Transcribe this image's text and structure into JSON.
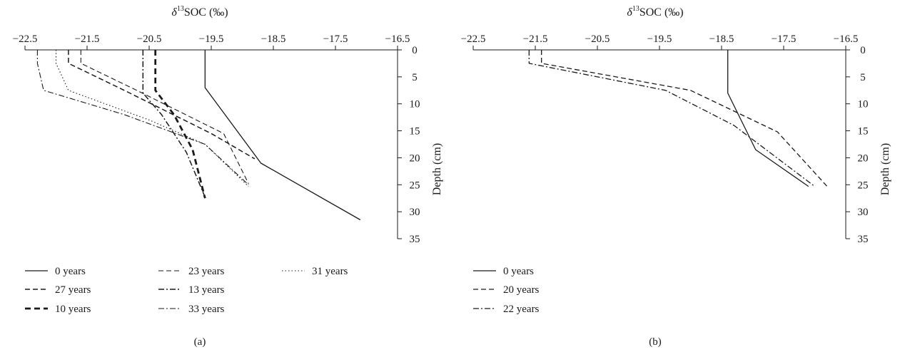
{
  "chart_data": [
    {
      "type": "line",
      "panel_label": "(a)",
      "xlabel": {
        "symbol": "δ",
        "superscript": "13",
        "text": "SOC (‰)"
      },
      "ylabel": "Depth (cm)",
      "x_ticks": [
        "−22.5",
        "−21.5",
        "−20.5",
        "−19.5",
        "−18.5",
        "−17.5",
        "−16.5"
      ],
      "y_ticks": [
        "0",
        "5",
        "10",
        "15",
        "20",
        "25",
        "30",
        "35"
      ],
      "xlim": [
        -22.5,
        -16.5
      ],
      "ylim": [
        0,
        35
      ],
      "x_axis_position": "top",
      "y_axis_position": "right",
      "y_inverted": true,
      "grid": false,
      "legend_position": "bottom",
      "legend_columns": 3,
      "series": [
        {
          "name": "0 years",
          "dash": "solid",
          "width": 1.3,
          "points": [
            [
              -19.6,
              0
            ],
            [
              -19.6,
              7
            ],
            [
              -18.7,
              21
            ],
            [
              -17.1,
              31.5
            ]
          ]
        },
        {
          "name": "27 years",
          "dash": "dash",
          "width": 1.5,
          "points": [
            [
              -21.8,
              0
            ],
            [
              -21.8,
              2.5
            ],
            [
              -20.9,
              7.5
            ],
            [
              -19.5,
              15.5
            ],
            [
              -18.8,
              20.2
            ]
          ]
        },
        {
          "name": "10 years",
          "dash": "dash-bold",
          "width": 2.8,
          "points": [
            [
              -20.4,
              0
            ],
            [
              -20.4,
              7.5
            ],
            [
              -20.1,
              12
            ],
            [
              -19.8,
              18.5
            ],
            [
              -19.6,
              27.5
            ]
          ]
        },
        {
          "name": "23 years",
          "dash": "dash",
          "width": 1.1,
          "points": [
            [
              -21.6,
              0
            ],
            [
              -21.6,
              2.5
            ],
            [
              -20.7,
              7.5
            ],
            [
              -19.3,
              15.5
            ],
            [
              -18.9,
              24.8
            ]
          ]
        },
        {
          "name": "13 years",
          "dash": "dashdot",
          "width": 1.5,
          "points": [
            [
              -20.6,
              0
            ],
            [
              -20.6,
              8
            ],
            [
              -20.3,
              12
            ],
            [
              -19.9,
              19
            ],
            [
              -19.6,
              27.3
            ]
          ]
        },
        {
          "name": "33 years",
          "dash": "dashdot",
          "width": 1.1,
          "points": [
            [
              -22.3,
              0
            ],
            [
              -22.3,
              2.5
            ],
            [
              -22.2,
              7.5
            ],
            [
              -20.9,
              12
            ],
            [
              -19.6,
              17.5
            ],
            [
              -18.9,
              25
            ]
          ]
        },
        {
          "name": "31 years",
          "dash": "dot",
          "width": 1.1,
          "points": [
            [
              -22.0,
              0
            ],
            [
              -22.0,
              2.5
            ],
            [
              -21.8,
              7.5
            ],
            [
              -20.5,
              13
            ],
            [
              -19.6,
              17.5
            ],
            [
              -18.9,
              25.3
            ]
          ]
        }
      ],
      "legend_order": [
        "0 years",
        "27 years",
        "10 years",
        "23 years",
        "13 years",
        "33 years",
        "31 years"
      ]
    },
    {
      "type": "line",
      "panel_label": "(b)",
      "xlabel": {
        "symbol": "δ",
        "superscript": "13",
        "text": "SOC (‰)"
      },
      "ylabel": "Depth (cm)",
      "x_ticks": [
        "−22.5",
        "−21.5",
        "−20.5",
        "−19.5",
        "−18.5",
        "−17.5",
        "−16.5"
      ],
      "y_ticks": [
        "0",
        "5",
        "10",
        "15",
        "20",
        "25",
        "30",
        "35"
      ],
      "xlim": [
        -22.5,
        -16.5
      ],
      "ylim": [
        0,
        35
      ],
      "x_axis_position": "top",
      "y_axis_position": "right",
      "y_inverted": true,
      "grid": false,
      "legend_position": "bottom",
      "legend_columns": 1,
      "series": [
        {
          "name": "0 years",
          "dash": "solid",
          "width": 1.3,
          "points": [
            [
              -18.4,
              0
            ],
            [
              -18.4,
              8
            ],
            [
              -17.95,
              18.5
            ],
            [
              -17.1,
              25.3
            ]
          ]
        },
        {
          "name": "20 years",
          "dash": "dash",
          "width": 1.3,
          "points": [
            [
              -21.4,
              0
            ],
            [
              -21.4,
              2.5
            ],
            [
              -19.0,
              7.5
            ],
            [
              -17.6,
              15.2
            ],
            [
              -16.8,
              25.3
            ]
          ]
        },
        {
          "name": "22 years",
          "dash": "dashdot",
          "width": 1.3,
          "points": [
            [
              -21.6,
              0
            ],
            [
              -21.6,
              2.5
            ],
            [
              -19.4,
              7.5
            ],
            [
              -18.3,
              14
            ],
            [
              -17.0,
              25.3
            ]
          ]
        }
      ],
      "legend_order": [
        "0 years",
        "20 years",
        "22 years"
      ]
    }
  ]
}
